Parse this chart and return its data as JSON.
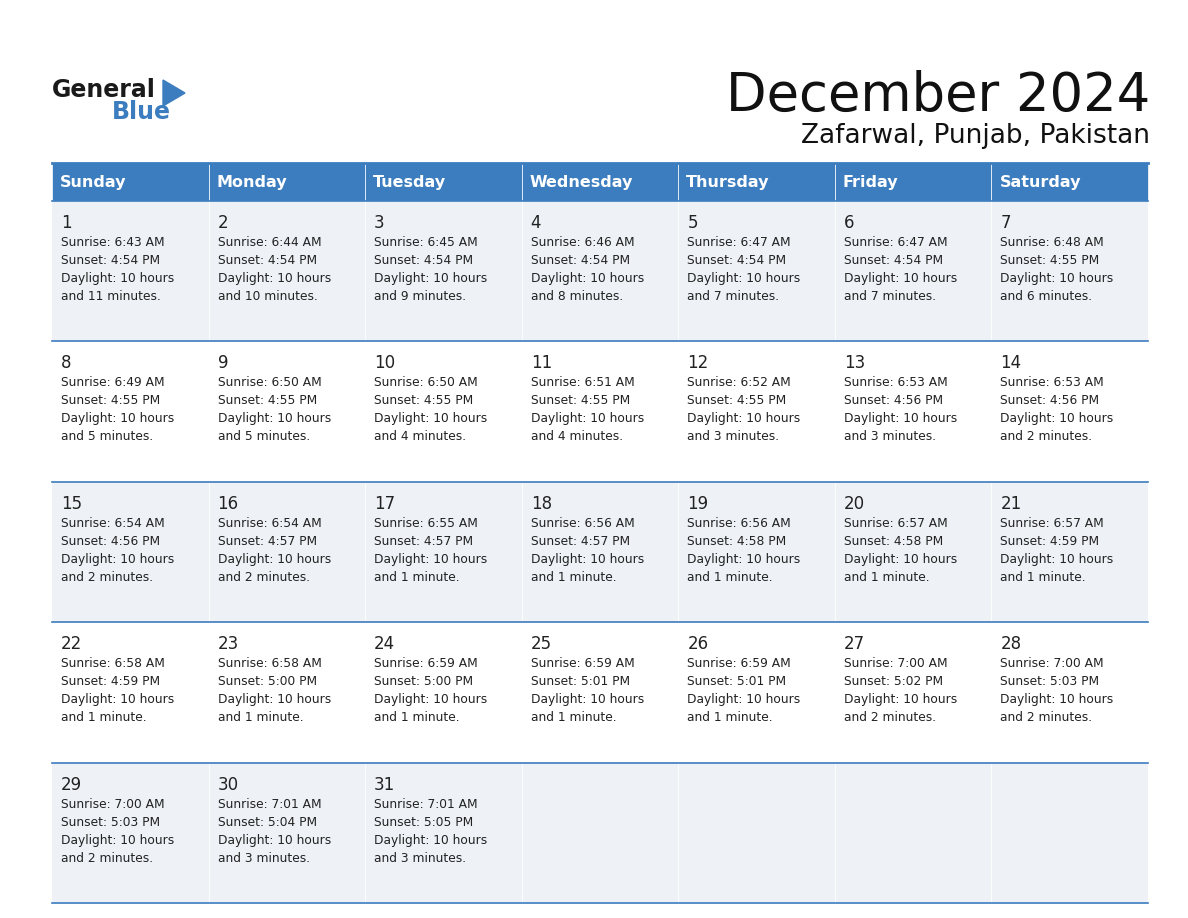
{
  "title": "December 2024",
  "subtitle": "Zafarwal, Punjab, Pakistan",
  "header_color": "#3c7dbf",
  "header_text_color": "#ffffff",
  "cell_bg_odd": "#eef2f7",
  "cell_bg_even": "#ffffff",
  "border_color": "#3c7dbf",
  "days_of_week": [
    "Sunday",
    "Monday",
    "Tuesday",
    "Wednesday",
    "Thursday",
    "Friday",
    "Saturday"
  ],
  "calendar": [
    [
      {
        "day": "1",
        "sunrise": "6:43 AM",
        "sunset": "4:54 PM",
        "daylight_h": "10 hours",
        "daylight_m": "and 11 minutes."
      },
      {
        "day": "2",
        "sunrise": "6:44 AM",
        "sunset": "4:54 PM",
        "daylight_h": "10 hours",
        "daylight_m": "and 10 minutes."
      },
      {
        "day": "3",
        "sunrise": "6:45 AM",
        "sunset": "4:54 PM",
        "daylight_h": "10 hours",
        "daylight_m": "and 9 minutes."
      },
      {
        "day": "4",
        "sunrise": "6:46 AM",
        "sunset": "4:54 PM",
        "daylight_h": "10 hours",
        "daylight_m": "and 8 minutes."
      },
      {
        "day": "5",
        "sunrise": "6:47 AM",
        "sunset": "4:54 PM",
        "daylight_h": "10 hours",
        "daylight_m": "and 7 minutes."
      },
      {
        "day": "6",
        "sunrise": "6:47 AM",
        "sunset": "4:54 PM",
        "daylight_h": "10 hours",
        "daylight_m": "and 7 minutes."
      },
      {
        "day": "7",
        "sunrise": "6:48 AM",
        "sunset": "4:55 PM",
        "daylight_h": "10 hours",
        "daylight_m": "and 6 minutes."
      }
    ],
    [
      {
        "day": "8",
        "sunrise": "6:49 AM",
        "sunset": "4:55 PM",
        "daylight_h": "10 hours",
        "daylight_m": "and 5 minutes."
      },
      {
        "day": "9",
        "sunrise": "6:50 AM",
        "sunset": "4:55 PM",
        "daylight_h": "10 hours",
        "daylight_m": "and 5 minutes."
      },
      {
        "day": "10",
        "sunrise": "6:50 AM",
        "sunset": "4:55 PM",
        "daylight_h": "10 hours",
        "daylight_m": "and 4 minutes."
      },
      {
        "day": "11",
        "sunrise": "6:51 AM",
        "sunset": "4:55 PM",
        "daylight_h": "10 hours",
        "daylight_m": "and 4 minutes."
      },
      {
        "day": "12",
        "sunrise": "6:52 AM",
        "sunset": "4:55 PM",
        "daylight_h": "10 hours",
        "daylight_m": "and 3 minutes."
      },
      {
        "day": "13",
        "sunrise": "6:53 AM",
        "sunset": "4:56 PM",
        "daylight_h": "10 hours",
        "daylight_m": "and 3 minutes."
      },
      {
        "day": "14",
        "sunrise": "6:53 AM",
        "sunset": "4:56 PM",
        "daylight_h": "10 hours",
        "daylight_m": "and 2 minutes."
      }
    ],
    [
      {
        "day": "15",
        "sunrise": "6:54 AM",
        "sunset": "4:56 PM",
        "daylight_h": "10 hours",
        "daylight_m": "and 2 minutes."
      },
      {
        "day": "16",
        "sunrise": "6:54 AM",
        "sunset": "4:57 PM",
        "daylight_h": "10 hours",
        "daylight_m": "and 2 minutes."
      },
      {
        "day": "17",
        "sunrise": "6:55 AM",
        "sunset": "4:57 PM",
        "daylight_h": "10 hours",
        "daylight_m": "and 1 minute."
      },
      {
        "day": "18",
        "sunrise": "6:56 AM",
        "sunset": "4:57 PM",
        "daylight_h": "10 hours",
        "daylight_m": "and 1 minute."
      },
      {
        "day": "19",
        "sunrise": "6:56 AM",
        "sunset": "4:58 PM",
        "daylight_h": "10 hours",
        "daylight_m": "and 1 minute."
      },
      {
        "day": "20",
        "sunrise": "6:57 AM",
        "sunset": "4:58 PM",
        "daylight_h": "10 hours",
        "daylight_m": "and 1 minute."
      },
      {
        "day": "21",
        "sunrise": "6:57 AM",
        "sunset": "4:59 PM",
        "daylight_h": "10 hours",
        "daylight_m": "and 1 minute."
      }
    ],
    [
      {
        "day": "22",
        "sunrise": "6:58 AM",
        "sunset": "4:59 PM",
        "daylight_h": "10 hours",
        "daylight_m": "and 1 minute."
      },
      {
        "day": "23",
        "sunrise": "6:58 AM",
        "sunset": "5:00 PM",
        "daylight_h": "10 hours",
        "daylight_m": "and 1 minute."
      },
      {
        "day": "24",
        "sunrise": "6:59 AM",
        "sunset": "5:00 PM",
        "daylight_h": "10 hours",
        "daylight_m": "and 1 minute."
      },
      {
        "day": "25",
        "sunrise": "6:59 AM",
        "sunset": "5:01 PM",
        "daylight_h": "10 hours",
        "daylight_m": "and 1 minute."
      },
      {
        "day": "26",
        "sunrise": "6:59 AM",
        "sunset": "5:01 PM",
        "daylight_h": "10 hours",
        "daylight_m": "and 1 minute."
      },
      {
        "day": "27",
        "sunrise": "7:00 AM",
        "sunset": "5:02 PM",
        "daylight_h": "10 hours",
        "daylight_m": "and 2 minutes."
      },
      {
        "day": "28",
        "sunrise": "7:00 AM",
        "sunset": "5:03 PM",
        "daylight_h": "10 hours",
        "daylight_m": "and 2 minutes."
      }
    ],
    [
      {
        "day": "29",
        "sunrise": "7:00 AM",
        "sunset": "5:03 PM",
        "daylight_h": "10 hours",
        "daylight_m": "and 2 minutes."
      },
      {
        "day": "30",
        "sunrise": "7:01 AM",
        "sunset": "5:04 PM",
        "daylight_h": "10 hours",
        "daylight_m": "and 3 minutes."
      },
      {
        "day": "31",
        "sunrise": "7:01 AM",
        "sunset": "5:05 PM",
        "daylight_h": "10 hours",
        "daylight_m": "and 3 minutes."
      },
      null,
      null,
      null,
      null
    ]
  ]
}
